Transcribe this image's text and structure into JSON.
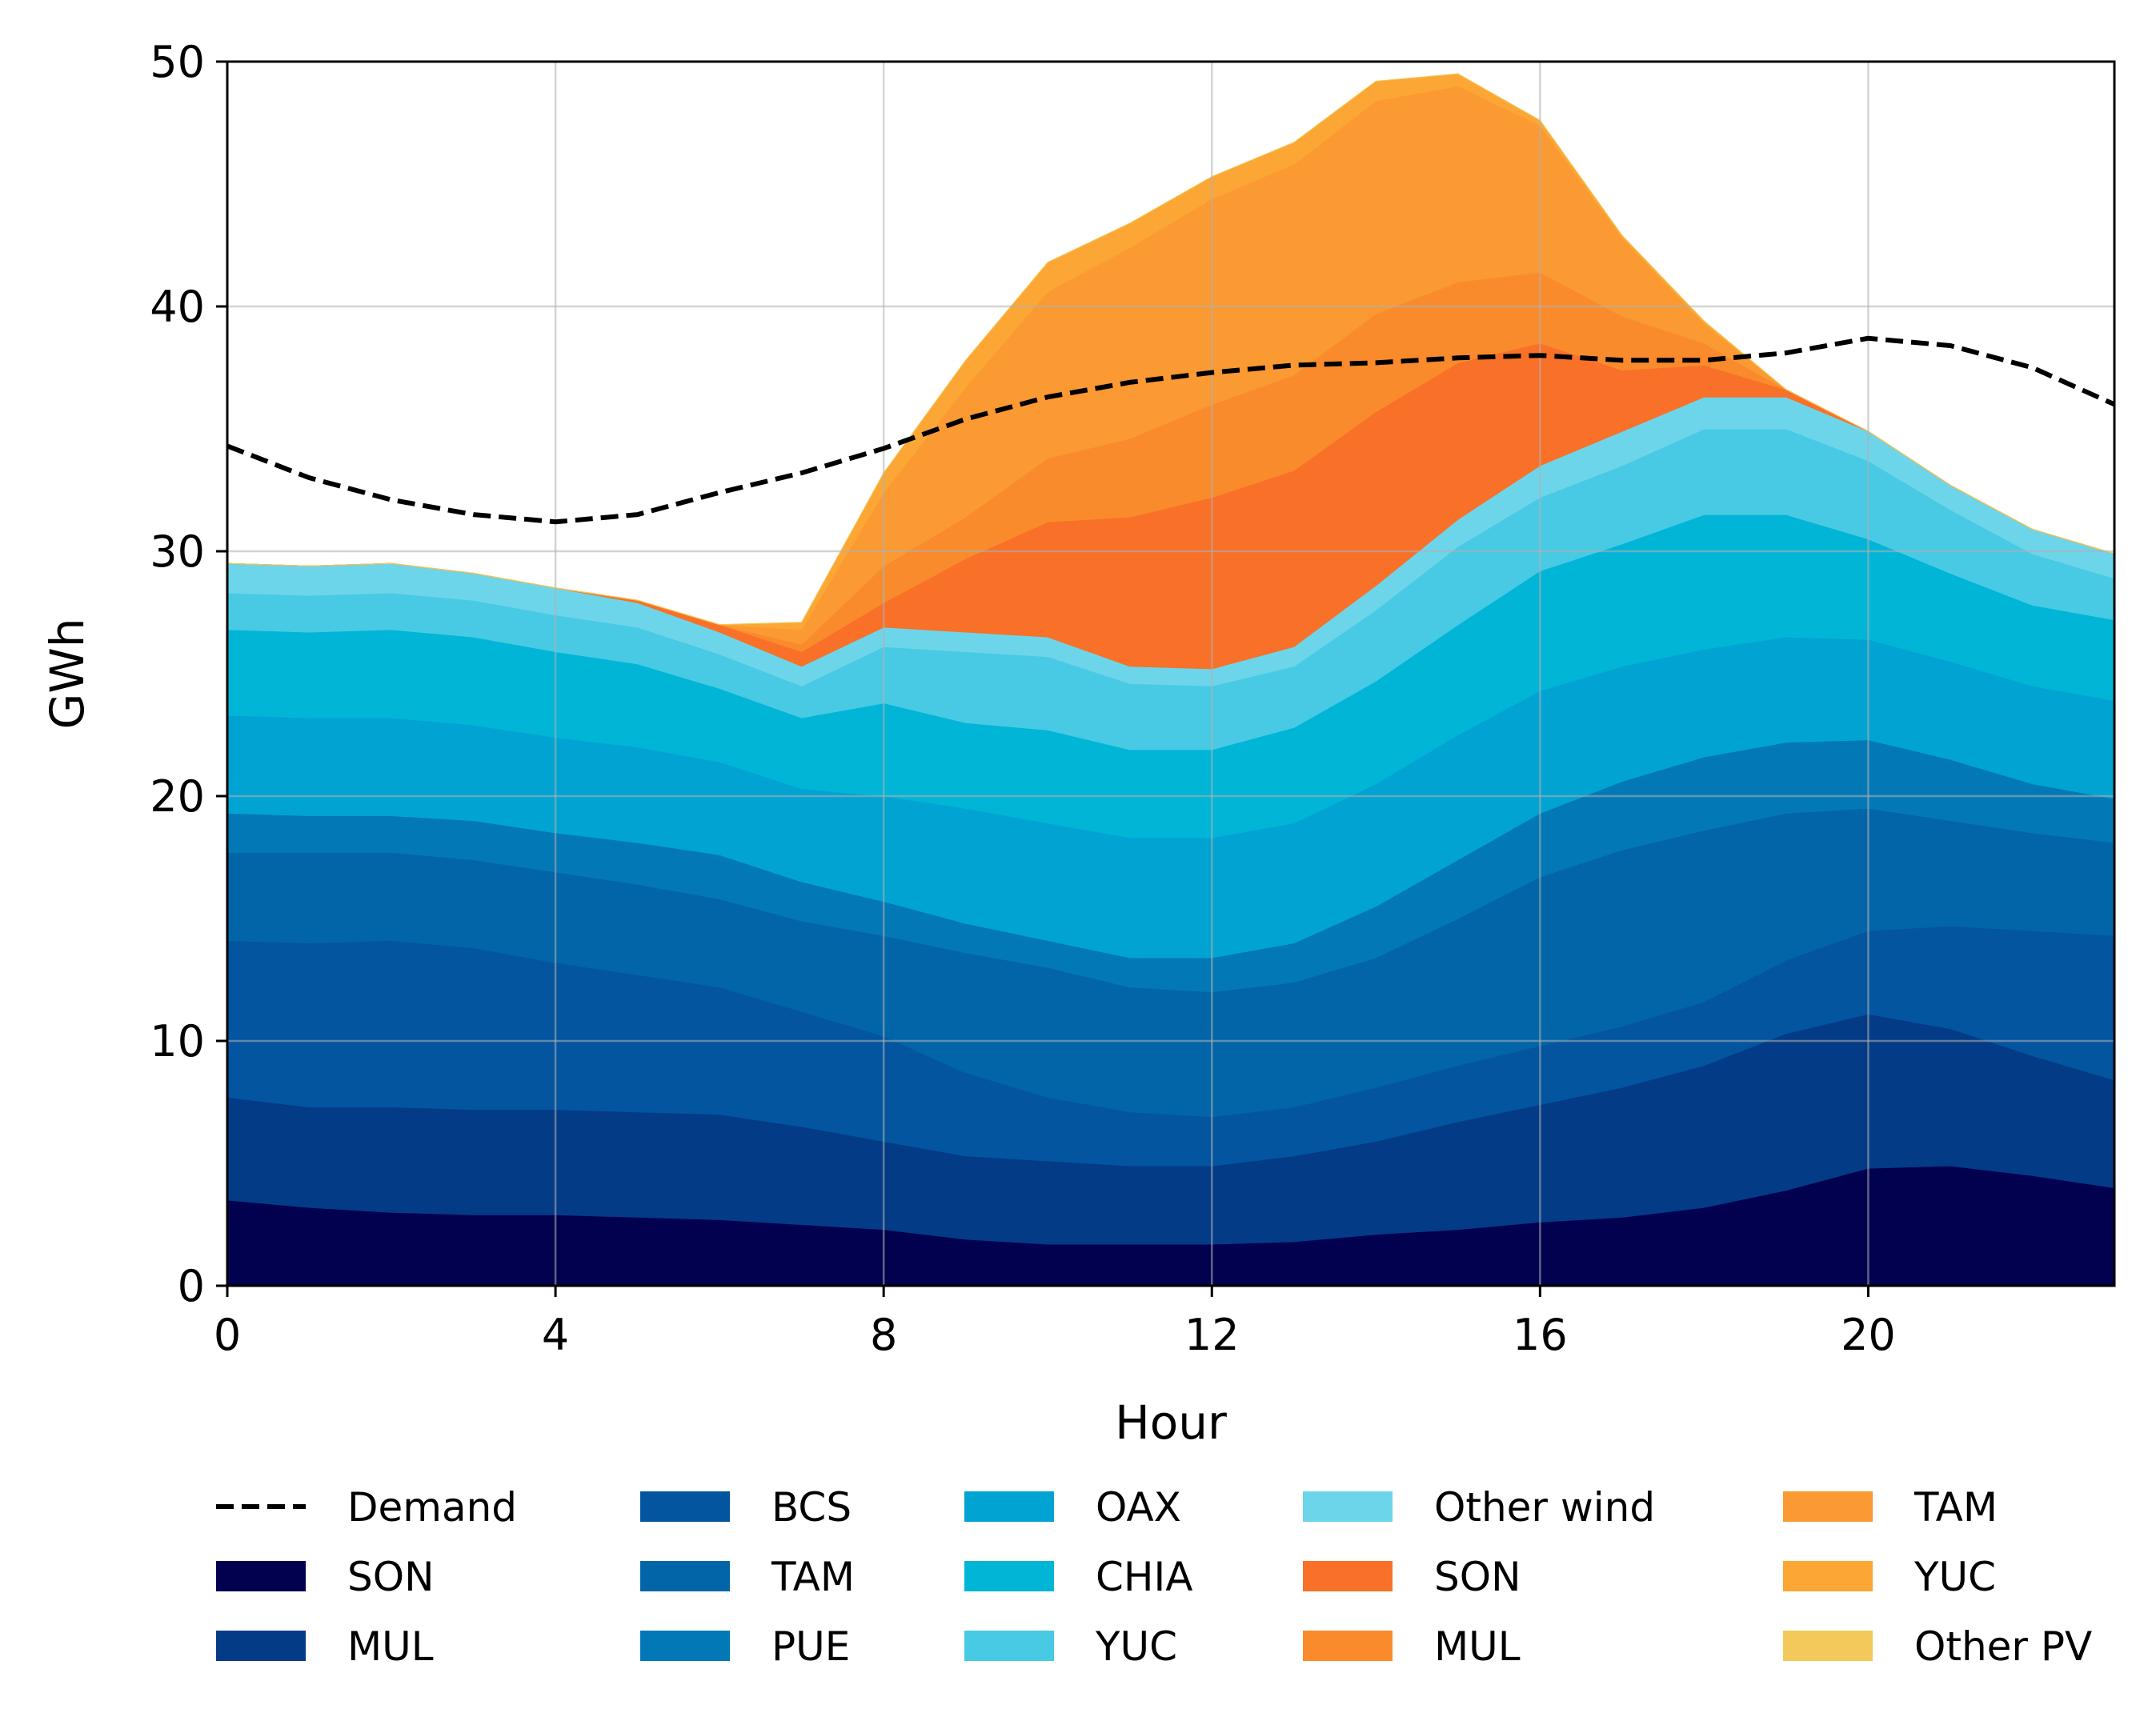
{
  "chart_data": {
    "type": "area",
    "xlabel": "Hour",
    "ylabel": "GWh",
    "xlim": [
      0,
      23
    ],
    "ylim": [
      0,
      50
    ],
    "xticks": [
      0,
      4,
      8,
      12,
      16,
      20
    ],
    "yticks": [
      0,
      10,
      20,
      30,
      40,
      50
    ],
    "grid": true,
    "legend_position": "bottom",
    "x": [
      0,
      1,
      2,
      3,
      4,
      5,
      6,
      7,
      8,
      9,
      10,
      11,
      12,
      13,
      14,
      15,
      16,
      17,
      18,
      19,
      20,
      21,
      22,
      23
    ],
    "demand": {
      "name": "Demand",
      "color": "#000000",
      "values": [
        34.3,
        33.0,
        32.1,
        31.5,
        31.2,
        31.5,
        32.4,
        33.2,
        34.2,
        35.4,
        36.3,
        36.9,
        37.3,
        37.6,
        37.7,
        37.9,
        38.0,
        37.8,
        37.8,
        38.1,
        38.7,
        38.4,
        37.5,
        36.0
      ]
    },
    "series": [
      {
        "name": "SON",
        "color": "#020150",
        "values": [
          3.5,
          3.2,
          3.0,
          2.9,
          2.9,
          2.8,
          2.7,
          2.5,
          2.3,
          1.9,
          1.7,
          1.7,
          1.7,
          1.8,
          2.1,
          2.3,
          2.6,
          2.8,
          3.2,
          3.9,
          4.8,
          4.9,
          4.5,
          4.0
        ]
      },
      {
        "name": "MUL",
        "color": "#033b86",
        "values": [
          4.2,
          4.1,
          4.3,
          4.3,
          4.3,
          4.3,
          4.3,
          4.0,
          3.6,
          3.4,
          3.4,
          3.2,
          3.2,
          3.5,
          3.8,
          4.4,
          4.8,
          5.3,
          5.8,
          6.4,
          6.3,
          5.6,
          4.9,
          4.4
        ]
      },
      {
        "name": "BCS",
        "color": "#0355a0",
        "values": [
          6.4,
          6.7,
          6.8,
          6.6,
          6.0,
          5.6,
          5.2,
          4.7,
          4.3,
          3.4,
          2.6,
          2.2,
          2.0,
          2.0,
          2.2,
          2.3,
          2.4,
          2.5,
          2.6,
          3.0,
          3.4,
          4.2,
          5.1,
          5.9
        ]
      },
      {
        "name": "TAM",
        "color": "#0265a8",
        "values": [
          3.6,
          3.7,
          3.6,
          3.6,
          3.7,
          3.7,
          3.6,
          3.7,
          4.1,
          4.9,
          5.3,
          5.1,
          5.1,
          5.1,
          5.3,
          6.0,
          6.9,
          7.2,
          7.0,
          6.0,
          5.0,
          4.3,
          4.0,
          3.8
        ]
      },
      {
        "name": "PUE",
        "color": "#0278b7",
        "values": [
          1.6,
          1.5,
          1.5,
          1.6,
          1.6,
          1.7,
          1.8,
          1.6,
          1.4,
          1.2,
          1.1,
          1.2,
          1.4,
          1.6,
          2.1,
          2.4,
          2.6,
          2.8,
          3.0,
          2.9,
          2.8,
          2.5,
          2.0,
          1.8
        ]
      },
      {
        "name": "OAX",
        "color": "#01a3d3",
        "values": [
          4.0,
          4.0,
          4.0,
          3.9,
          3.9,
          3.9,
          3.8,
          3.8,
          4.3,
          4.7,
          4.8,
          4.9,
          4.9,
          4.9,
          5.0,
          5.1,
          5.0,
          4.7,
          4.4,
          4.3,
          4.1,
          4.0,
          4.0,
          4.0
        ]
      },
      {
        "name": "CHIA",
        "color": "#01b5d7",
        "values": [
          3.5,
          3.5,
          3.6,
          3.6,
          3.5,
          3.4,
          3.0,
          2.9,
          3.8,
          3.5,
          3.8,
          3.6,
          3.6,
          3.9,
          4.2,
          4.5,
          4.9,
          5.0,
          5.5,
          5.0,
          4.1,
          3.6,
          3.3,
          3.3
        ]
      },
      {
        "name": "YUC",
        "color": "#48cae4",
        "values": [
          1.5,
          1.5,
          1.5,
          1.5,
          1.5,
          1.5,
          1.4,
          1.3,
          2.3,
          2.9,
          3.0,
          2.7,
          2.6,
          2.5,
          2.9,
          3.2,
          3.0,
          3.2,
          3.5,
          3.5,
          3.2,
          2.6,
          2.1,
          1.7
        ]
      },
      {
        "name": "Other wind",
        "color": "#6dd5ea",
        "values": [
          1.2,
          1.2,
          1.2,
          1.1,
          1.1,
          1.0,
          0.9,
          0.8,
          0.8,
          0.8,
          0.8,
          0.7,
          0.7,
          0.8,
          1.0,
          1.1,
          1.3,
          1.4,
          1.3,
          1.3,
          1.2,
          1.0,
          1.0,
          1.0
        ]
      },
      {
        "name": "SON",
        "color": "#f97028",
        "values": [
          0,
          0,
          0,
          0,
          0,
          0.1,
          0.3,
          0.6,
          1.0,
          3.0,
          4.7,
          6.1,
          7.0,
          7.2,
          7.1,
          6.4,
          5.0,
          2.5,
          1.3,
          0.3,
          0,
          0,
          0,
          0
        ]
      },
      {
        "name": "MUL",
        "color": "#f98b2d",
        "values": [
          0,
          0,
          0,
          0,
          0,
          0,
          0,
          0.3,
          1.5,
          1.7,
          2.6,
          3.2,
          3.8,
          3.9,
          4.0,
          3.3,
          2.9,
          2.2,
          0.9,
          0,
          0,
          0,
          0,
          0
        ]
      },
      {
        "name": "TAM",
        "color": "#fb9932",
        "values": [
          0,
          0,
          0,
          0,
          0,
          0,
          0,
          0.6,
          3.0,
          5.3,
          6.8,
          7.8,
          8.4,
          8.6,
          8.7,
          8.0,
          6.0,
          3.2,
          0.8,
          0,
          0,
          0,
          0,
          0
        ]
      },
      {
        "name": "YUC",
        "color": "#fca635",
        "values": [
          0,
          0,
          0,
          0,
          0,
          0,
          0,
          0.3,
          0.8,
          1.1,
          1.2,
          1.0,
          0.9,
          0.9,
          0.8,
          0.5,
          0.2,
          0.1,
          0.1,
          0,
          0,
          0,
          0,
          0
        ]
      },
      {
        "name": "Other PV",
        "color": "#f2c95a",
        "values": [
          0,
          0,
          0,
          0,
          0,
          0,
          0,
          0,
          0,
          0,
          0,
          0,
          0,
          0,
          0,
          0,
          0,
          0,
          0,
          0,
          0,
          0,
          0,
          0
        ]
      }
    ],
    "legend_order": [
      {
        "kind": "line",
        "series": "demand"
      },
      {
        "kind": "area",
        "index": 0
      },
      {
        "kind": "area",
        "index": 1
      },
      {
        "kind": "area",
        "index": 2
      },
      {
        "kind": "area",
        "index": 3
      },
      {
        "kind": "area",
        "index": 4
      },
      {
        "kind": "area",
        "index": 5
      },
      {
        "kind": "area",
        "index": 6
      },
      {
        "kind": "area",
        "index": 7
      },
      {
        "kind": "area",
        "index": 8
      },
      {
        "kind": "area",
        "index": 9
      },
      {
        "kind": "area",
        "index": 10
      },
      {
        "kind": "area",
        "index": 11
      },
      {
        "kind": "area",
        "index": 12
      },
      {
        "kind": "area",
        "index": 13
      }
    ]
  }
}
